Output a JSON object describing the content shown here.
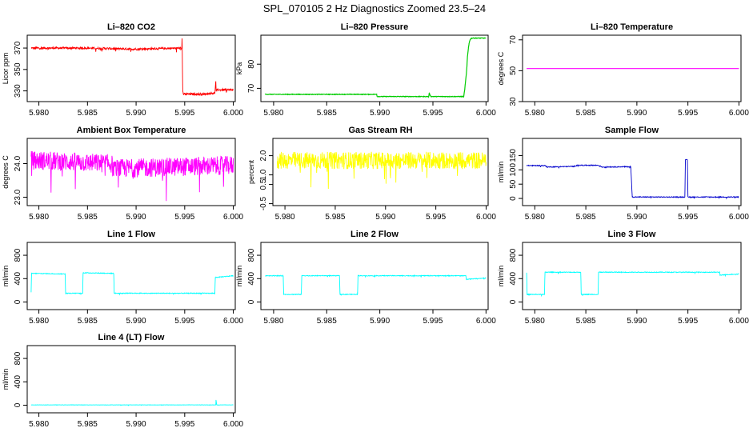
{
  "figure": {
    "title": "SPL_070105  2 Hz Diagnostics Zoomed 23.5–24"
  },
  "chart_data": [
    {
      "type": "line",
      "title": "Li–820 CO2",
      "ylabel": "Licor ppm",
      "color": "#ff0000",
      "xlim": [
        5.9788,
        6.0002
      ],
      "ylim": [
        320,
        382
      ],
      "xticks": [
        5.98,
        5.985,
        5.99,
        5.995,
        6.0
      ],
      "xtick_labels": [
        "5.980",
        "5.985",
        "5.990",
        "5.995",
        "6.000"
      ],
      "yticks": [
        330,
        350,
        370
      ],
      "ytick_labels": [
        "330",
        "350",
        "370"
      ],
      "noise": 1.0,
      "series": [
        {
          "x": [
            5.9792,
            5.985,
            5.99,
            5.9947,
            5.99473,
            5.9948,
            5.99485,
            5.9951,
            5.997,
            5.9981,
            5.9982,
            5.99823,
            5.99835,
            6.0
          ],
          "y": [
            370,
            370,
            369,
            370,
            379,
            330,
            327,
            327,
            327,
            328,
            339,
            330,
            331,
            331
          ]
        }
      ]
    },
    {
      "type": "line",
      "title": "Li–820 Pressure",
      "ylabel": "kPa",
      "color": "#00cc00",
      "xlim": [
        5.9788,
        6.0002
      ],
      "ylim": [
        64.5,
        92
      ],
      "xticks": [
        5.98,
        5.985,
        5.99,
        5.995,
        6.0
      ],
      "xtick_labels": [
        "5.980",
        "5.985",
        "5.990",
        "5.995",
        "6.000"
      ],
      "yticks": [
        70,
        80
      ],
      "ytick_labels": [
        "70",
        "80"
      ],
      "noise": 0.12,
      "series": [
        {
          "x": [
            5.9792,
            5.9897,
            5.98975,
            5.9946,
            5.99465,
            5.9948,
            5.99485,
            5.9979,
            5.998,
            5.99805,
            5.99815,
            5.9982,
            5.99825,
            5.9983,
            5.99835,
            5.9984,
            5.99845,
            5.9985,
            5.99855,
            5.9986,
            5.9987,
            6.0
          ],
          "y": [
            67.5,
            67.5,
            66.6,
            66.6,
            67.9,
            66.7,
            66.6,
            66.6,
            69.5,
            72,
            76,
            79,
            83,
            85,
            87,
            88.5,
            89.4,
            90,
            90.4,
            90.7,
            90.8,
            90.8
          ]
        }
      ]
    },
    {
      "type": "line",
      "title": "Li–820 Temperature",
      "ylabel": "degrees C",
      "color": "#ff00ff",
      "xlim": [
        5.9788,
        6.0002
      ],
      "ylim": [
        30,
        73
      ],
      "xticks": [
        5.98,
        5.985,
        5.99,
        5.995,
        6.0
      ],
      "xtick_labels": [
        "5.980",
        "5.985",
        "5.990",
        "5.995",
        "6.000"
      ],
      "yticks": [
        30,
        50,
        70
      ],
      "ytick_labels": [
        "30",
        "50",
        "70"
      ],
      "noise": 0,
      "series": [
        {
          "x": [
            5.9792,
            6.0
          ],
          "y": [
            51.4,
            51.4
          ]
        }
      ]
    },
    {
      "type": "line",
      "title": "Ambient Box Temperature",
      "ylabel": "degrees C",
      "color": "#ff00ff",
      "xlim": [
        5.9788,
        6.0002
      ],
      "ylim": [
        22.75,
        24.75
      ],
      "xticks": [
        5.98,
        5.985,
        5.99,
        5.995,
        6.0
      ],
      "xtick_labels": [
        "5.980",
        "5.985",
        "5.990",
        "5.995",
        "6.000"
      ],
      "yticks": [
        23.0,
        24.0
      ],
      "ytick_labels": [
        "23.0",
        "24.0"
      ],
      "noise": 0.28,
      "series": [
        {
          "x": [
            5.9792,
            5.9875,
            5.9876,
            6.0
          ],
          "y": [
            24.1,
            24.0,
            23.85,
            23.95
          ]
        }
      ]
    },
    {
      "type": "line",
      "title": "Gas Stream RH",
      "ylabel": "percent",
      "color": "#ffff00",
      "xlim": [
        5.9788,
        6.0002
      ],
      "ylim": [
        -0.6,
        2.9
      ],
      "xticks": [
        5.98,
        5.985,
        5.99,
        5.995,
        6.0
      ],
      "xtick_labels": [
        "5.980",
        "5.985",
        "5.990",
        "5.995",
        "6.000"
      ],
      "yticks": [
        -0.5,
        0.5,
        1.0,
        2.0
      ],
      "ytick_labels": [
        "-0.5",
        "0.5",
        "1.0",
        "2.0"
      ],
      "noise": 0.45,
      "series": [
        {
          "x": [
            5.9792,
            6.0
          ],
          "y": [
            1.75,
            1.75
          ]
        }
      ]
    },
    {
      "type": "line",
      "title": "Sample Flow",
      "ylabel": "ml/min",
      "color": "#0000cc",
      "xlim": [
        5.9788,
        6.0002
      ],
      "ylim": [
        -25,
        210
      ],
      "xticks": [
        5.98,
        5.985,
        5.99,
        5.995,
        6.0
      ],
      "xtick_labels": [
        "5.980",
        "5.985",
        "5.990",
        "5.995",
        "6.000"
      ],
      "yticks": [
        0,
        50,
        100,
        150
      ],
      "ytick_labels": [
        "0",
        "50",
        "100",
        "150"
      ],
      "noise": 1.5,
      "series": [
        {
          "x": [
            5.9792,
            5.981,
            5.9812,
            5.9838,
            5.9842,
            5.9862,
            5.9866,
            5.9894,
            5.98955,
            5.9947,
            5.99475,
            5.99495,
            5.995,
            6.0
          ],
          "y": [
            115,
            115,
            110,
            112,
            116,
            116,
            110,
            111,
            5,
            5,
            135,
            135,
            5,
            5
          ]
        }
      ]
    },
    {
      "type": "line",
      "title": "Line 1 Flow",
      "ylabel": "ml/min",
      "color": "#00ffff",
      "xlim": [
        5.9788,
        6.0002
      ],
      "ylim": [
        -130,
        1020
      ],
      "xticks": [
        5.98,
        5.985,
        5.99,
        5.995,
        6.0
      ],
      "xtick_labels": [
        "5.980",
        "5.985",
        "5.990",
        "5.995",
        "6.000"
      ],
      "yticks": [
        0,
        400,
        800
      ],
      "ytick_labels": [
        "0",
        "400",
        "800"
      ],
      "noise": 6,
      "series": [
        {
          "x": [
            5.9792,
            5.97925,
            5.9827,
            5.98275,
            5.9845,
            5.98455,
            5.9877,
            5.98775,
            5.9981,
            5.99815,
            6.0
          ],
          "y": [
            160,
            490,
            480,
            150,
            150,
            500,
            490,
            150,
            150,
            420,
            450
          ]
        }
      ]
    },
    {
      "type": "line",
      "title": "Line 2 Flow",
      "ylabel": "ml/min",
      "color": "#00ffff",
      "xlim": [
        5.9788,
        6.0002
      ],
      "ylim": [
        -130,
        1020
      ],
      "xticks": [
        5.98,
        5.985,
        5.99,
        5.995,
        6.0
      ],
      "xtick_labels": [
        "5.980",
        "5.985",
        "5.990",
        "5.995",
        "6.000"
      ],
      "yticks": [
        0,
        400,
        800
      ],
      "ytick_labels": [
        "0",
        "400",
        "800"
      ],
      "noise": 6,
      "series": [
        {
          "x": [
            5.9792,
            5.9809,
            5.98095,
            5.9826,
            5.98265,
            5.9862,
            5.98625,
            5.9879,
            5.98795,
            5.9981,
            5.99815,
            6.0
          ],
          "y": [
            450,
            450,
            130,
            130,
            450,
            450,
            130,
            130,
            450,
            450,
            390,
            410
          ]
        }
      ]
    },
    {
      "type": "line",
      "title": "Line 3 Flow",
      "ylabel": "ml/min",
      "color": "#00ffff",
      "xlim": [
        5.9788,
        6.0002
      ],
      "ylim": [
        -130,
        1020
      ],
      "xticks": [
        5.98,
        5.985,
        5.99,
        5.995,
        6.0
      ],
      "xtick_labels": [
        "5.980",
        "5.985",
        "5.990",
        "5.995",
        "6.000"
      ],
      "yticks": [
        0,
        400,
        800
      ],
      "ytick_labels": [
        "0",
        "400",
        "800"
      ],
      "noise": 6,
      "series": [
        {
          "x": [
            5.9792,
            5.97925,
            5.98095,
            5.981,
            5.9845,
            5.98455,
            5.9862,
            5.98625,
            5.9981,
            5.99815,
            6.0
          ],
          "y": [
            500,
            130,
            130,
            510,
            510,
            130,
            130,
            510,
            510,
            460,
            480
          ]
        }
      ]
    },
    {
      "type": "line",
      "title": "Line 4 (LT) Flow",
      "ylabel": "ml/min",
      "color": "#00ffff",
      "xlim": [
        5.9788,
        6.0002
      ],
      "ylim": [
        -130,
        1020
      ],
      "xticks": [
        5.98,
        5.985,
        5.99,
        5.995,
        6.0
      ],
      "xtick_labels": [
        "5.980",
        "5.985",
        "5.990",
        "5.995",
        "6.000"
      ],
      "yticks": [
        0,
        400,
        800
      ],
      "ytick_labels": [
        "0",
        "400",
        "800"
      ],
      "noise": 2,
      "series": [
        {
          "x": [
            5.9792,
            5.9982,
            5.99822,
            5.99826,
            5.9983,
            6.0
          ],
          "y": [
            5,
            5,
            90,
            40,
            5,
            5
          ]
        }
      ]
    }
  ]
}
